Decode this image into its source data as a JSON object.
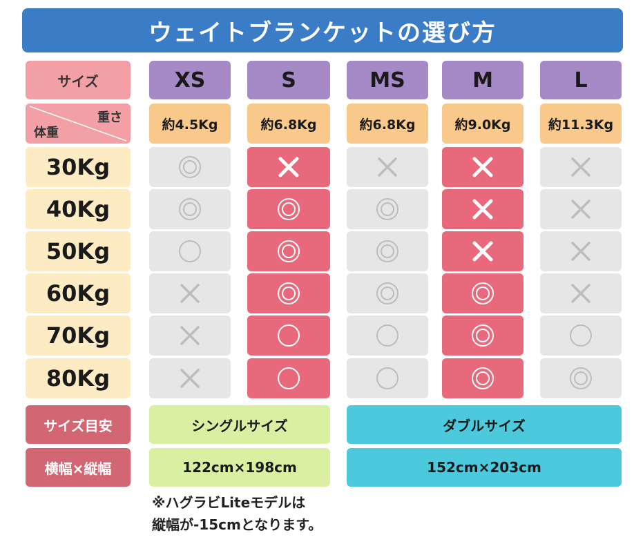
{
  "title": "ウェイトブランケットの選び方",
  "header": {
    "size_label": "サイズ",
    "weight_corner_label": "重さ",
    "body_weight_corner_label": "体重",
    "sizes": [
      "XS",
      "S",
      "MS",
      "M",
      "L"
    ],
    "weights": [
      "約4.5Kg",
      "約6.8Kg",
      "約6.8Kg",
      "約9.0Kg",
      "約11.3Kg"
    ]
  },
  "rows": [
    {
      "label": "30Kg",
      "cells": [
        "double-circle",
        "cross",
        "cross",
        "cross",
        "cross"
      ]
    },
    {
      "label": "40Kg",
      "cells": [
        "double-circle",
        "double-circle",
        "double-circle",
        "cross",
        "cross"
      ]
    },
    {
      "label": "50Kg",
      "cells": [
        "circle",
        "double-circle",
        "double-circle",
        "cross",
        "cross"
      ]
    },
    {
      "label": "60Kg",
      "cells": [
        "cross",
        "double-circle",
        "double-circle",
        "double-circle",
        "cross"
      ]
    },
    {
      "label": "70Kg",
      "cells": [
        "cross",
        "circle",
        "circle",
        "double-circle",
        "circle"
      ]
    },
    {
      "label": "80Kg",
      "cells": [
        "cross",
        "circle",
        "circle",
        "double-circle",
        "double-circle"
      ]
    }
  ],
  "highlighted_columns": [
    1,
    3
  ],
  "bottom": {
    "size_guide_label": "サイズ目安",
    "dimensions_label": "横幅×縦幅",
    "single_label": "シングルサイズ",
    "double_label": "ダブルサイズ",
    "single_dims": "122cm×198cm",
    "double_dims": "152cm×203cm"
  },
  "note_lines": [
    "※ハグラビLiteモデルは",
    "縦幅が-15cmとなります。"
  ],
  "colors": {
    "title_bg": "#3a7cc6",
    "size_header": "#a68ac8",
    "weight_header": "#f9c98c",
    "pink_header": "#f2a0a6",
    "row_label": "#fdebc4",
    "highlight_cell": "#e8697b",
    "gray_cell": "#e6e6e6",
    "bottom_label": "#d26672",
    "single_bg": "#d9efa1",
    "double_bg": "#4cc9dd"
  }
}
